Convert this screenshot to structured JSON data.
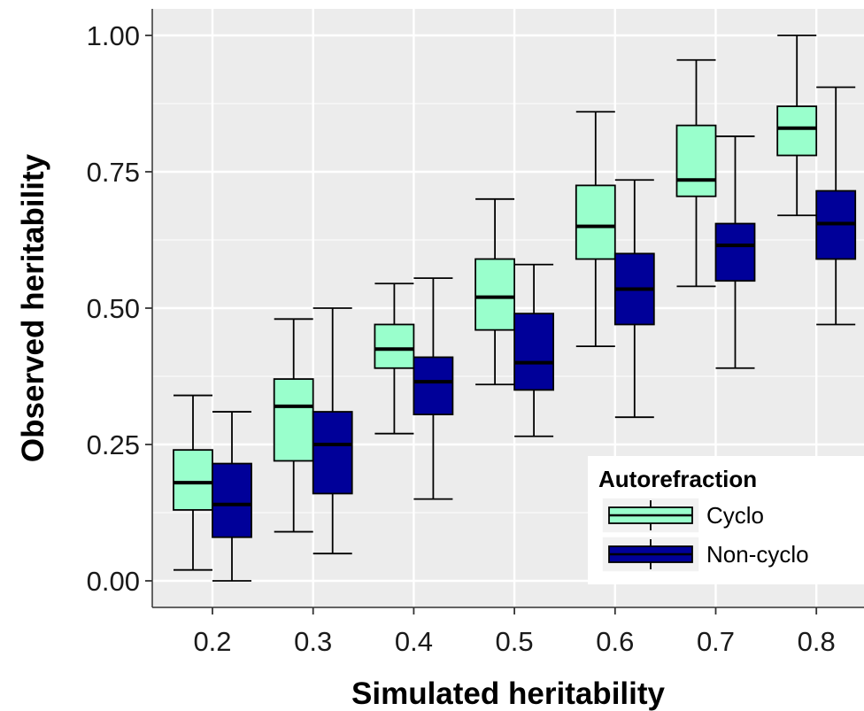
{
  "chart_data": {
    "type": "boxplot",
    "xlabel": "Simulated heritability",
    "ylabel": "Observed heritability",
    "categories": [
      "0.2",
      "0.3",
      "0.4",
      "0.5",
      "0.6",
      "0.7",
      "0.8"
    ],
    "y_ticks": [
      "0.00",
      "0.25",
      "0.50",
      "0.75",
      "1.00"
    ],
    "ylim": [
      -0.05,
      1.05
    ],
    "grid": true,
    "legend": {
      "title": "Autorefraction",
      "position": "bottom-right"
    },
    "series": [
      {
        "name": "Cyclo",
        "color": "#99ffcc",
        "boxes": [
          {
            "min": 0.02,
            "q1": 0.13,
            "median": 0.18,
            "q3": 0.24,
            "max": 0.34
          },
          {
            "min": 0.09,
            "q1": 0.22,
            "median": 0.32,
            "q3": 0.37,
            "max": 0.48
          },
          {
            "min": 0.27,
            "q1": 0.39,
            "median": 0.425,
            "q3": 0.47,
            "max": 0.545
          },
          {
            "min": 0.36,
            "q1": 0.46,
            "median": 0.52,
            "q3": 0.59,
            "max": 0.7
          },
          {
            "min": 0.43,
            "q1": 0.59,
            "median": 0.65,
            "q3": 0.725,
            "max": 0.86
          },
          {
            "min": 0.54,
            "q1": 0.705,
            "median": 0.735,
            "q3": 0.835,
            "max": 0.955
          },
          {
            "min": 0.67,
            "q1": 0.78,
            "median": 0.83,
            "q3": 0.87,
            "max": 1.0
          }
        ]
      },
      {
        "name": "Non-cyclo",
        "color": "#000099",
        "boxes": [
          {
            "min": 0.0,
            "q1": 0.08,
            "median": 0.14,
            "q3": 0.215,
            "max": 0.31
          },
          {
            "min": 0.05,
            "q1": 0.16,
            "median": 0.25,
            "q3": 0.31,
            "max": 0.5
          },
          {
            "min": 0.15,
            "q1": 0.305,
            "median": 0.365,
            "q3": 0.41,
            "max": 0.555
          },
          {
            "min": 0.265,
            "q1": 0.35,
            "median": 0.4,
            "q3": 0.49,
            "max": 0.58
          },
          {
            "min": 0.3,
            "q1": 0.47,
            "median": 0.535,
            "q3": 0.6,
            "max": 0.735
          },
          {
            "min": 0.39,
            "q1": 0.55,
            "median": 0.615,
            "q3": 0.655,
            "max": 0.815
          },
          {
            "min": 0.47,
            "q1": 0.59,
            "median": 0.655,
            "q3": 0.715,
            "max": 0.905
          }
        ]
      }
    ]
  }
}
